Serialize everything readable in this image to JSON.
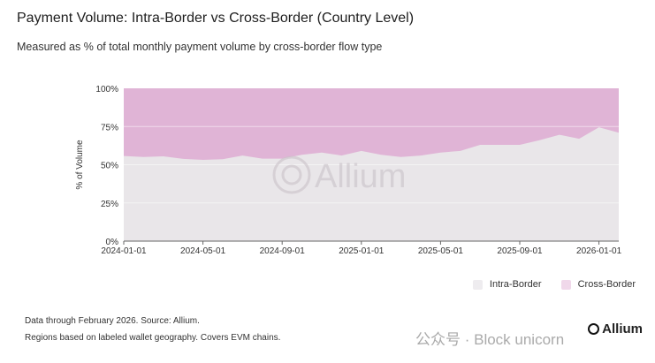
{
  "header": {
    "title": "Payment Volume: Intra-Border vs Cross-Border (Country Level)",
    "subtitle": "Measured as % of total monthly payment volume by cross-border flow type"
  },
  "chart_data": {
    "type": "area",
    "stacked": true,
    "normalized": true,
    "title": "Payment Volume: Intra-Border vs Cross-Border (Country Level)",
    "xlabel": "",
    "ylabel": "% of Volume",
    "ylim": [
      0,
      100
    ],
    "y_ticks": [
      "0%",
      "25%",
      "50%",
      "75%",
      "100%"
    ],
    "x_ticks": [
      "2024-01-01",
      "2024-05-01",
      "2024-09-01",
      "2025-01-01",
      "2025-05-01",
      "2025-09-01",
      "2026-01-01"
    ],
    "x": [
      "2024-01",
      "2024-02",
      "2024-03",
      "2024-04",
      "2024-05",
      "2024-06",
      "2024-07",
      "2024-08",
      "2024-09",
      "2024-10",
      "2024-11",
      "2024-12",
      "2025-01",
      "2025-02",
      "2025-03",
      "2025-04",
      "2025-05",
      "2025-06",
      "2025-07",
      "2025-08",
      "2025-09",
      "2025-10",
      "2025-11",
      "2025-12",
      "2026-01",
      "2026-02"
    ],
    "series": [
      {
        "name": "Intra-Border",
        "color": "#e9e6e9",
        "values": [
          55.7,
          55,
          55.5,
          53.8,
          53.2,
          53.6,
          56,
          54,
          54,
          56.5,
          58,
          56,
          59,
          56.5,
          55,
          56,
          58,
          59,
          63,
          63,
          63,
          66,
          69.6,
          67,
          74.5,
          71
        ]
      },
      {
        "name": "Cross-Border",
        "color": "#e0b4d6",
        "values": [
          44.3,
          45,
          44.5,
          46.2,
          46.8,
          46.4,
          44,
          46,
          46,
          43.5,
          42,
          44,
          41,
          43.5,
          45,
          44,
          42,
          41,
          37,
          37,
          37,
          34,
          30.4,
          33,
          25.5,
          29
        ]
      }
    ],
    "legend_position": "bottom-right"
  },
  "legend": [
    "Intra-Border",
    "Cross-Border"
  ],
  "footer": {
    "note1": "Data through February 2026. Source: Allium.",
    "note2": "Regions based on labeled wallet geography. Covers EVM chains.",
    "logo": "Allium",
    "watermark": "公众号 · Block unicorn"
  }
}
